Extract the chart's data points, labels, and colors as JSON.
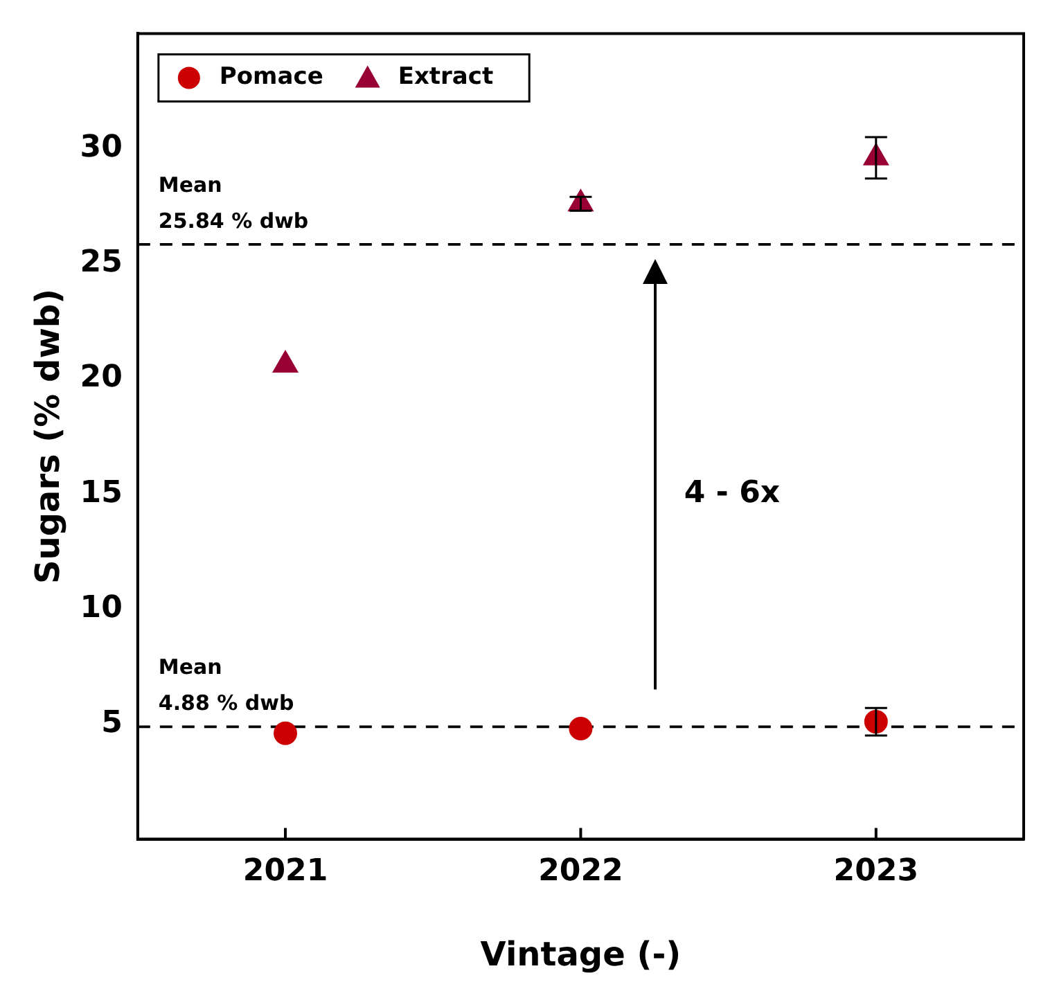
{
  "chart_data": {
    "type": "scatter",
    "xlabel": "Vintage (-)",
    "ylabel": "Sugars (% dwb)",
    "categories": [
      "2021",
      "2022",
      "2023"
    ],
    "series": [
      {
        "name": "Pomace",
        "color": "#cc0000",
        "marker": "circle",
        "values": [
          4.6,
          4.8,
          5.1
        ],
        "errors": [
          null,
          null,
          0.6
        ]
      },
      {
        "name": "Extract",
        "color": "#990033",
        "marker": "triangle",
        "values": [
          20.6,
          27.6,
          29.6
        ],
        "errors": [
          null,
          0.3,
          0.9
        ]
      }
    ],
    "ylim": [
      0,
      35
    ],
    "yticks": [
      5,
      10,
      15,
      20,
      25,
      30
    ],
    "grid": false,
    "legend": "top left",
    "ref_lines": [
      {
        "axis": "y",
        "value": 25.84,
        "label": "Mean\n25.84 % dwb",
        "line_style": "dashed",
        "color": "#000000"
      },
      {
        "axis": "y",
        "value": 4.88,
        "label": "Mean\n4.88 % dwb",
        "line_style": "dashed",
        "color": "#000000"
      }
    ],
    "annotations": [
      "4 - 6x"
    ]
  }
}
